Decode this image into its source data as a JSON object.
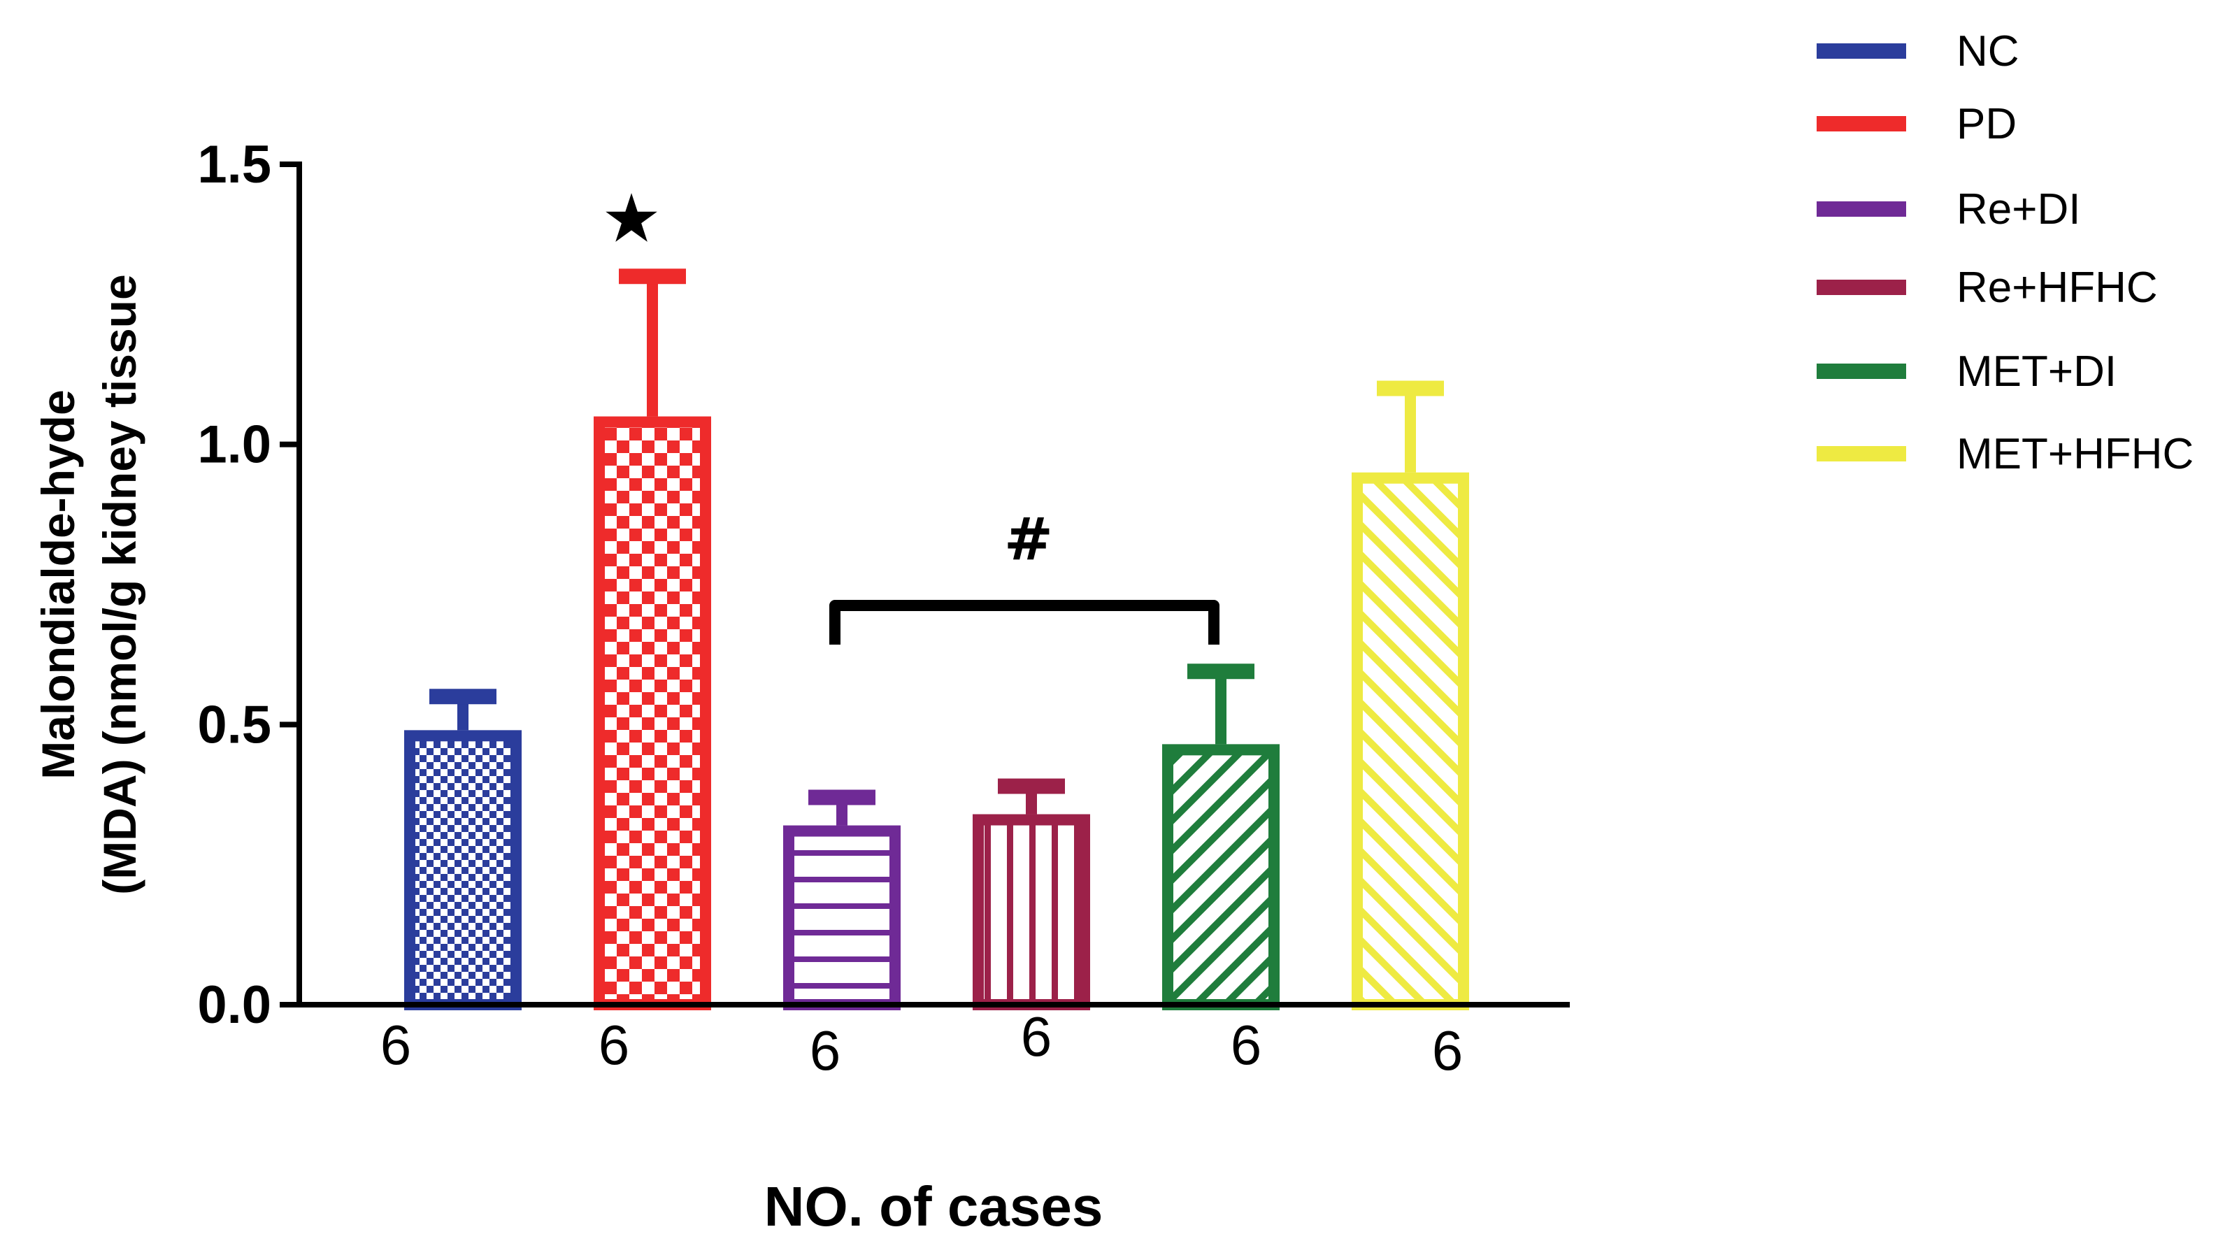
{
  "chart_data": {
    "type": "bar",
    "title": "",
    "xlabel": "NO. of cases",
    "ylabel_lines": [
      "Malondialde-hyde",
      "(MDA) (nmol/g kidney tissue"
    ],
    "ylim": [
      0,
      1.5
    ],
    "yticks": [
      "0.0",
      "0.5",
      "1.0",
      "1.5"
    ],
    "legend_position": "top-right",
    "series": [
      {
        "name": "NC",
        "value": 0.49,
        "error": 0.06,
        "n_label": "6",
        "color": "#2b3d9c",
        "pattern": "fine-checker"
      },
      {
        "name": "PD",
        "value": 1.05,
        "error": 0.25,
        "n_label": "6",
        "color": "#ee2b2b",
        "pattern": "checker"
      },
      {
        "name": "Re+DI",
        "value": 0.32,
        "error": 0.05,
        "n_label": "6",
        "color": "#6f2a96",
        "pattern": "horizontal-stripes"
      },
      {
        "name": "Re+HFHC",
        "value": 0.34,
        "error": 0.05,
        "n_label": "6",
        "color": "#9c2149",
        "pattern": "vertical-stripes"
      },
      {
        "name": "MET+DI",
        "value": 0.465,
        "error": 0.13,
        "n_label": "6",
        "color": "#1f7d3c",
        "pattern": "diagonal-up"
      },
      {
        "name": "MET+HFHC",
        "value": 0.95,
        "error": 0.15,
        "n_label": "6",
        "color": "#eeea42",
        "pattern": "diagonal-down"
      }
    ],
    "annotations": [
      {
        "text": "★",
        "target": "PD"
      },
      {
        "text": "#",
        "span": [
          "Re+DI",
          "MET+DI"
        ]
      }
    ]
  }
}
